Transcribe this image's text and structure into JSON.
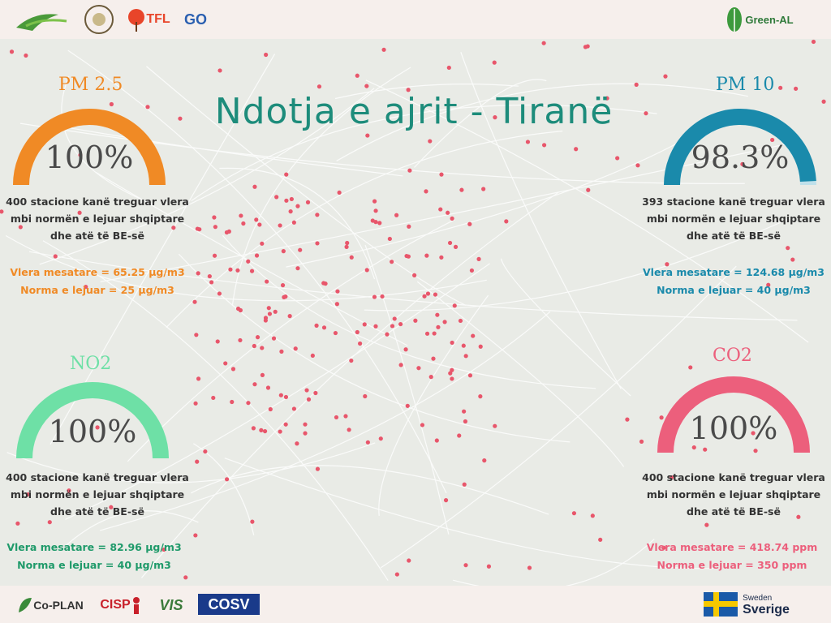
{
  "title": "Ndotja e ajrit - Tiranë",
  "pollutants": {
    "pm25": {
      "label": "PM 2.5",
      "percent": "100%",
      "fill": 1.0,
      "color": "#f08a25",
      "desc": "400 stacione kanë treguar vlera mbi normën e lejuar shqiptare dhe atë të BE-së",
      "mean": "Vlera mesatare = 65.25 μg/m3",
      "norm": "Norma e lejuar = 25 μg/m3",
      "stat_color": "#f08a25"
    },
    "pm10": {
      "label": "PM 10",
      "percent": "98.3%",
      "fill": 0.983,
      "color": "#1a8aab",
      "desc": "393 stacione kanë treguar vlera mbi normën e lejuar shqiptare dhe atë të BE-së",
      "mean": "Vlera mesatare = 124.68 μg/m3",
      "norm": "Norma e lejuar = 40 μg/m3",
      "stat_color": "#1a8aab"
    },
    "no2": {
      "label": "NO2",
      "percent": "100%",
      "fill": 1.0,
      "color": "#6ee0a6",
      "desc": "400 stacione kanë treguar vlera mbi normën e lejuar shqiptare dhe atë të BE-së",
      "mean": "Vlera mesatare = 82.96 μg/m3",
      "norm": "Norma e lejuar = 40 μg/m3",
      "stat_color": "#1f9a6a"
    },
    "co2": {
      "label": "CO2",
      "percent": "100%",
      "fill": 1.0,
      "color": "#ec5f7c",
      "desc": "400 stacione kanë treguar vlera mbi normën e lejuar shqiptare dhe atë të BE-së",
      "mean": "Vlera mesatare = 418.74 ppm",
      "norm": "Norma e lejuar = 350 ppm",
      "stat_color": "#ec5f7c"
    }
  },
  "logos": {
    "milieukontakt": "MILIEUKONTAKT ALBANIA",
    "tfl": "TFL",
    "go": "GO",
    "greenal": "Green-AL",
    "coplan": "Co-PLAN",
    "cisp": "CISP",
    "vis": "VIS",
    "cosv": "COSV",
    "sweden_top": "Sweden",
    "sweden_bottom": "Sverige"
  },
  "colors": {
    "station": "#e8566b",
    "title": "#1d8c7b"
  }
}
